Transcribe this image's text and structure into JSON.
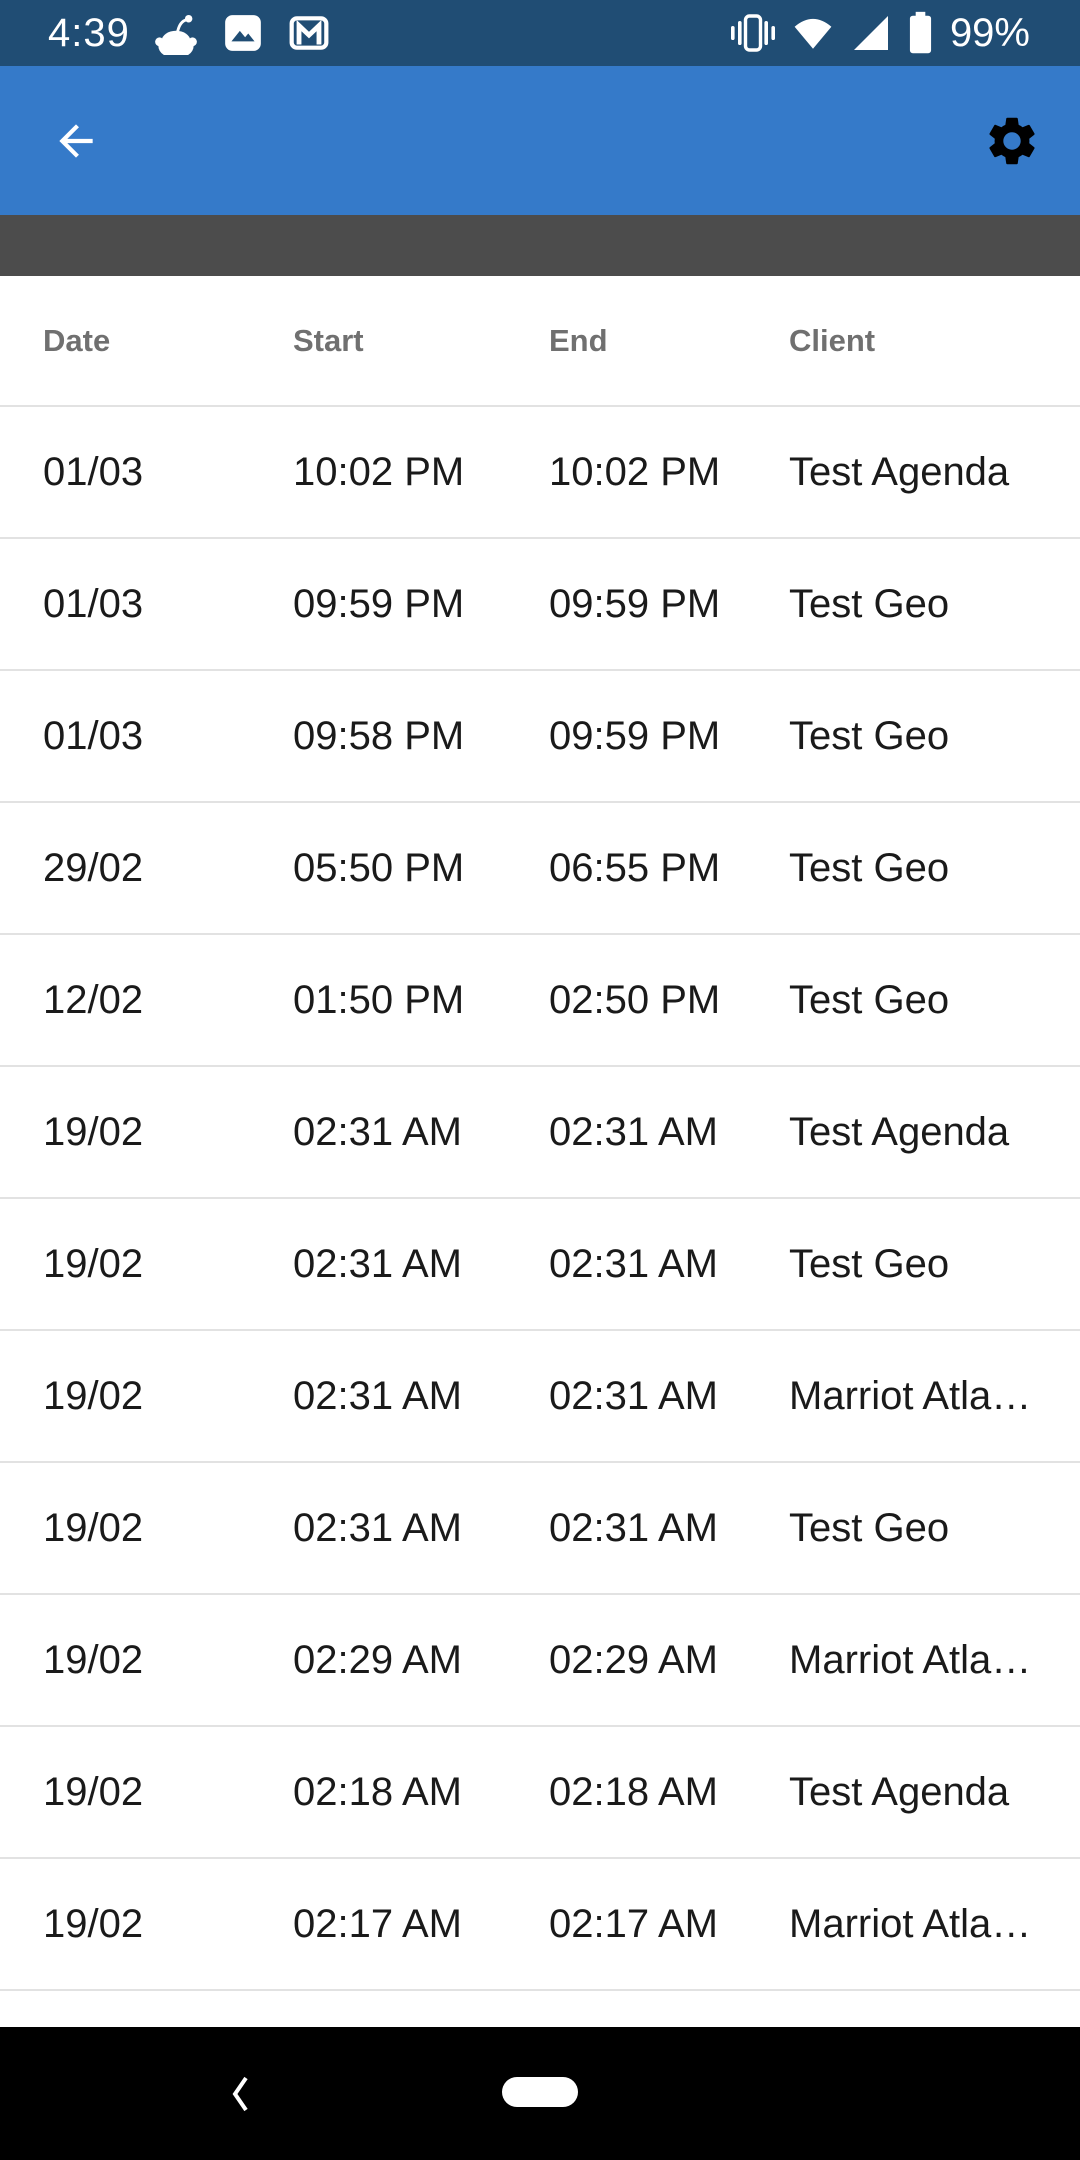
{
  "colors": {
    "status_bar_bg": "#204d74",
    "app_bar_bg": "#357ac9",
    "section_bar_bg": "#4c4c4c",
    "table_bg": "#ffffff",
    "divider": "#e2e2e2",
    "header_text": "#707070",
    "row_text": "#1a1a1a",
    "nav_bar_bg": "#000000",
    "icon_white": "#ffffff",
    "settings_icon": "#000000"
  },
  "status_bar": {
    "time": "4:39",
    "battery_percent": "99%",
    "notification_icons": [
      "reddit-icon",
      "gallery-icon",
      "gmail-icon"
    ],
    "status_icons": [
      "vibrate-icon",
      "wifi-icon",
      "cellular-signal-icon",
      "battery-icon"
    ]
  },
  "app_bar": {
    "back_icon": "arrow-left",
    "settings_icon": "gear"
  },
  "table": {
    "columns": [
      "Date",
      "Start",
      "End",
      "Client"
    ],
    "rows": [
      {
        "date": "01/03",
        "start": "10:02 PM",
        "end": "10:02 PM",
        "client": "Test Agenda"
      },
      {
        "date": "01/03",
        "start": "09:59 PM",
        "end": "09:59 PM",
        "client": "Test Geo"
      },
      {
        "date": "01/03",
        "start": "09:58 PM",
        "end": "09:59 PM",
        "client": "Test Geo"
      },
      {
        "date": "29/02",
        "start": "05:50 PM",
        "end": "06:55 PM",
        "client": "Test Geo"
      },
      {
        "date": "12/02",
        "start": "01:50 PM",
        "end": "02:50 PM",
        "client": "Test Geo"
      },
      {
        "date": "19/02",
        "start": "02:31 AM",
        "end": "02:31 AM",
        "client": "Test Agenda"
      },
      {
        "date": "19/02",
        "start": "02:31 AM",
        "end": "02:31 AM",
        "client": "Test Geo"
      },
      {
        "date": "19/02",
        "start": "02:31 AM",
        "end": "02:31 AM",
        "client": "Marriot Atla…"
      },
      {
        "date": "19/02",
        "start": "02:31 AM",
        "end": "02:31 AM",
        "client": "Test Geo"
      },
      {
        "date": "19/02",
        "start": "02:29 AM",
        "end": "02:29 AM",
        "client": "Marriot Atla…"
      },
      {
        "date": "19/02",
        "start": "02:18 AM",
        "end": "02:18 AM",
        "client": "Test Agenda"
      },
      {
        "date": "19/02",
        "start": "02:17 AM",
        "end": "02:17 AM",
        "client": "Marriot Atla…"
      }
    ]
  },
  "nav_bar": {
    "icons": [
      "back-chevron-icon",
      "home-pill"
    ]
  }
}
